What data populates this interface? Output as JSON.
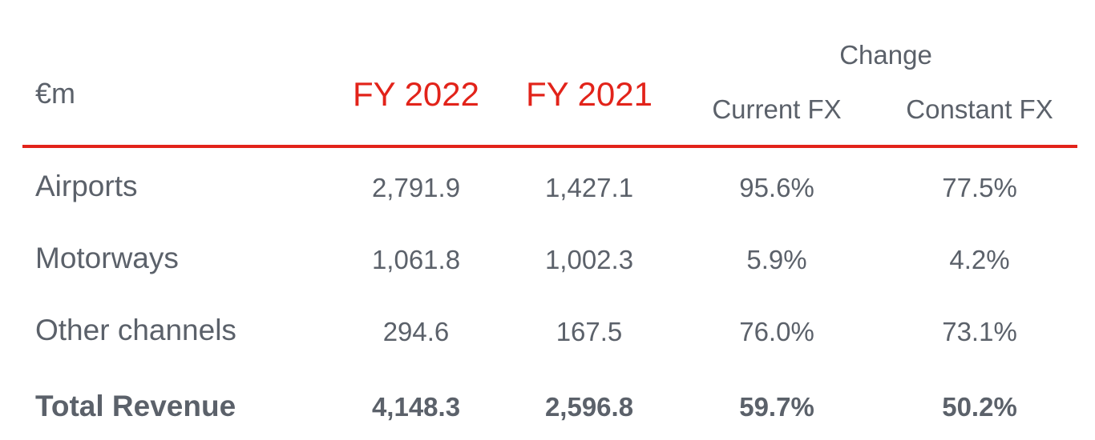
{
  "table": {
    "unit_label": "€m",
    "headers": {
      "fy2022": "FY 2022",
      "fy2021": "FY 2021",
      "change": "Change",
      "current_fx": "Current FX",
      "constant_fx": "Constant FX"
    },
    "rows": [
      {
        "label": "Airports",
        "fy2022": "2,791.9",
        "fy2021": "1,427.1",
        "current_fx": "95.6%",
        "constant_fx": "77.5%"
      },
      {
        "label": "Motorways",
        "fy2022": "1,061.8",
        "fy2021": "1,002.3",
        "current_fx": "5.9%",
        "constant_fx": "4.2%"
      },
      {
        "label": "Other channels",
        "fy2022": "294.6",
        "fy2021": "167.5",
        "current_fx": "76.0%",
        "constant_fx": "73.1%"
      }
    ],
    "total": {
      "label": "Total Revenue",
      "fy2022": "4,148.3",
      "fy2021": "2,596.8",
      "current_fx": "59.7%",
      "constant_fx": "50.2%"
    },
    "colors": {
      "accent": "#e2231a",
      "text": "#5b616a"
    }
  }
}
